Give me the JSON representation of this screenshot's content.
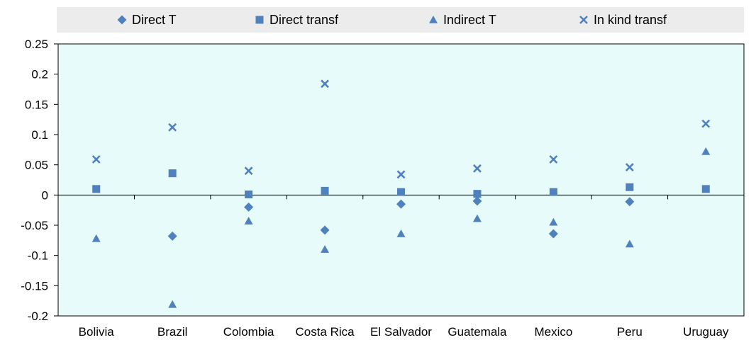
{
  "chart_data": {
    "type": "scatter",
    "categories": [
      "Bolivia",
      "Brazil",
      "Colombia",
      "Costa Rica",
      "El Salvador",
      "Guatemala",
      "Mexico",
      "Peru",
      "Uruguay"
    ],
    "series": [
      {
        "name": "Direct T",
        "marker": "diamond",
        "values": [
          null,
          -0.068,
          -0.02,
          -0.058,
          -0.015,
          -0.01,
          -0.064,
          -0.011,
          null
        ]
      },
      {
        "name": "Direct transf",
        "marker": "square",
        "values": [
          0.01,
          0.036,
          0.001,
          0.007,
          0.005,
          0.002,
          0.005,
          0.013,
          0.01
        ]
      },
      {
        "name": "Indirect T",
        "marker": "triangle",
        "values": [
          -0.072,
          -0.181,
          -0.043,
          -0.09,
          -0.064,
          -0.039,
          -0.045,
          -0.081,
          0.072
        ]
      },
      {
        "name": "In kind transf",
        "marker": "x",
        "values": [
          0.059,
          0.112,
          0.04,
          0.184,
          0.034,
          0.044,
          0.059,
          0.046,
          0.118
        ]
      }
    ],
    "ylim": [
      -0.2,
      0.25
    ],
    "yticks": [
      -0.2,
      -0.15,
      -0.1,
      -0.05,
      0,
      0.05,
      0.1,
      0.15,
      0.2,
      0.25
    ],
    "ytick_labels": [
      "-0.2",
      "-0.15",
      "-0.1",
      "-0.05",
      "0",
      "0.05",
      "0.1",
      "0.15",
      "0.2",
      "0.25"
    ],
    "grid": false,
    "legend_position": "top",
    "colors": {
      "marker": "#4f81bd",
      "plot_background": "#e8fbfb",
      "legend_background": "#ececec",
      "axis": "#000000"
    }
  }
}
